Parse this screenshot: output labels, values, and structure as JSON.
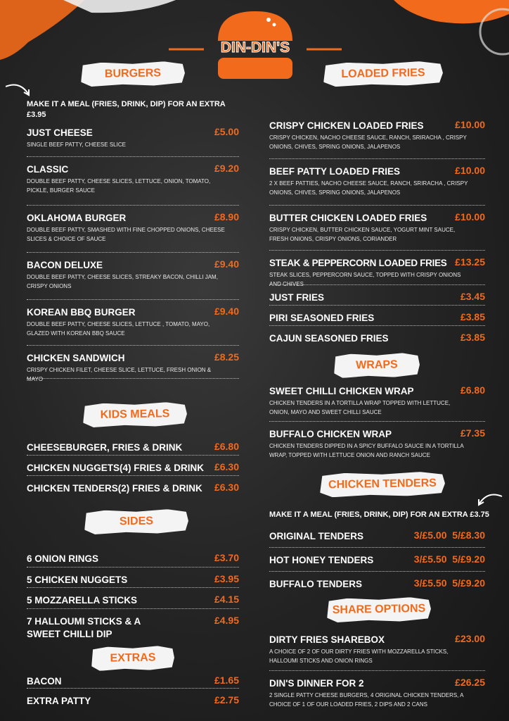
{
  "logo": {
    "text": "DIN-DIN'S",
    "color": "#f26a1b"
  },
  "accent": "#f26a1b",
  "left": [
    {
      "id": "burgers",
      "heading": "BURGERS",
      "note": "MAKE IT A MEAL (FRIES, DRINK, DIP) FOR AN EXTRA £3.95",
      "items": [
        {
          "name": "JUST CHEESE",
          "price": "£5.00",
          "desc": "SINGLE BEEF PATTY, CHEESE SLICE"
        },
        {
          "name": "CLASSIC",
          "price": "£9.20",
          "desc": "DOUBLE BEEF PATTY, CHEESE SLICES, LETTUCE, ONION, TOMATO, PICKLE, BURGER SAUCE"
        },
        {
          "name": "OKLAHOMA BURGER",
          "price": "£8.90",
          "desc": "DOUBLE BEEF PATTY, SMASHED WITH FINE CHOPPED ONIONS, CHEESE SLICES & CHOICE OF SAUCE"
        },
        {
          "name": "BACON DELUXE",
          "price": "£9.40",
          "desc": "DOUBLE BEEF PATTY, CHEESE SLICES, STREAKY BACON, CHILLI JAM, CRISPY ONIONS"
        },
        {
          "name": "KOREAN BBQ BURGER",
          "price": "£9.40",
          "desc": "DOUBLE BEEF PATTY, CHEESE SLICES, LETTUCE , TOMATO, MAYO, GLAZED WITH KOREAN BBQ SAUCE"
        },
        {
          "name": "CHICKEN SANDWICH",
          "price": "£8.25",
          "desc": "CRISPY CHICKEN FILET, CHEESE SLICE, LETTUCE, FRESH ONION & MAYO"
        }
      ]
    },
    {
      "id": "kids",
      "heading": "KIDS MEALS",
      "items": [
        {
          "name": "CHEESEBURGER, FRIES & DRINK",
          "price": "£6.80"
        },
        {
          "name": "CHICKEN NUGGETS(4) FRIES & DRINK",
          "price": "£6.30"
        },
        {
          "name": "CHICKEN TENDERS(2) FRIES & DRINK",
          "price": "£6.30"
        }
      ]
    },
    {
      "id": "sides",
      "heading": "SIDES",
      "items": [
        {
          "name": "6 ONION RINGS",
          "price": "£3.70"
        },
        {
          "name": "5 CHICKEN NUGGETS",
          "price": "£3.95"
        },
        {
          "name": "5 MOZZARELLA STICKS",
          "price": "£4.15"
        },
        {
          "name": "7 HALLOUMI STICKS & A SWEET CHILLI DIP",
          "price": "£4.95"
        }
      ]
    },
    {
      "id": "extras",
      "heading": "EXTRAS",
      "items": [
        {
          "name": "BACON",
          "price": "£1.65"
        },
        {
          "name": "EXTRA PATTY",
          "price": "£2.75"
        }
      ]
    }
  ],
  "right": [
    {
      "id": "loaded",
      "heading": "LOADED FRIES",
      "items": [
        {
          "name": "CRISPY CHICKEN LOADED FRIES",
          "price": "£10.00",
          "desc": "CRISPY CHICKEN, NACHO CHEESE SAUCE, RANCH, SRIRACHA , CRISPY ONIONS, CHIVES, SPRING ONIONS, JALAPENOS"
        },
        {
          "name": "BEEF PATTY LOADED FRIES",
          "price": "£10.00",
          "desc": "2 X BEEF PATTIES, NACHO CHEESE SAUCE, RANCH, SRIRACHA , CRISPY ONIONS, CHIVES, SPRING ONIONS, JALAPENOS"
        },
        {
          "name": "BUTTER CHICKEN LOADED FRIES",
          "price": "£10.00",
          "desc": "CRISPY CHICKEN, BUTTER CHICKEN SAUCE, YOGURT MINT SAUCE, FRESH ONIONS, CRISPY ONIONS, CORIANDER"
        },
        {
          "name": "STEAK & PEPPERCORN LOADED FRIES",
          "price": "£13.25",
          "desc": "STEAK SLICES, PEPPERCORN SAUCE, TOPPED WITH CRISPY ONIONS AND CHIVES"
        },
        {
          "name": "JUST FRIES",
          "price": "£3.45"
        },
        {
          "name": "PIRI SEASONED FRIES",
          "price": "£3.85"
        },
        {
          "name": "CAJUN SEASONED FRIES",
          "price": "£3.85"
        }
      ]
    },
    {
      "id": "wraps",
      "heading": "WRAPS",
      "items": [
        {
          "name": "SWEET CHILLI CHICKEN WRAP",
          "price": "£6.80",
          "desc": "CHICKEN TENDERS IN A TORTILLA WRAP TOPPED WITH LETTUCE, ONION, MAYO AND SWEET CHILLI SAUCE"
        },
        {
          "name": "BUFFALO CHICKEN WRAP",
          "price": "£7.35",
          "desc": "CHICKEN TENDERS DIPPED IN A SPICY BUFFALO SAUCE IN A TORTILLA WRAP, TOPPED WITH LETTUCE ONION AND RANCH SAUCE"
        }
      ]
    },
    {
      "id": "tenders",
      "heading": "CHICKEN TENDERS",
      "note": "MAKE IT A MEAL (FRIES, DRINK, DIP) FOR AN EXTRA £3.75",
      "items": [
        {
          "name": "ORIGINAL TENDERS",
          "price": "3/£5.00  5/£8.30"
        },
        {
          "name": "HOT HONEY TENDERS",
          "price": "3/£5.50  5/£9.20"
        },
        {
          "name": "BUFFALO TENDERS",
          "price": "3/£5.50  5/£9.20"
        }
      ]
    },
    {
      "id": "share",
      "heading": "SHARE OPTIONS",
      "items": [
        {
          "name": "DIRTY FRIES SHAREBOX",
          "price": "£23.00",
          "desc": "A CHOICE OF 2 OF OUR DIRTY FRIES WITH MOZZARELLA STICKS, HALLOUMI STICKS AND ONION RINGS"
        },
        {
          "name": "DIN'S DINNER FOR 2",
          "price": "£26.25",
          "desc": "2 SINGLE PATTY CHEESE BURGERS, 4 ORIGINAL CHICKEN TENDERS, A CHOICE OF 1 OF OUR LOADED FRIES, 2 DIPS AND 2 CANS"
        }
      ]
    }
  ]
}
